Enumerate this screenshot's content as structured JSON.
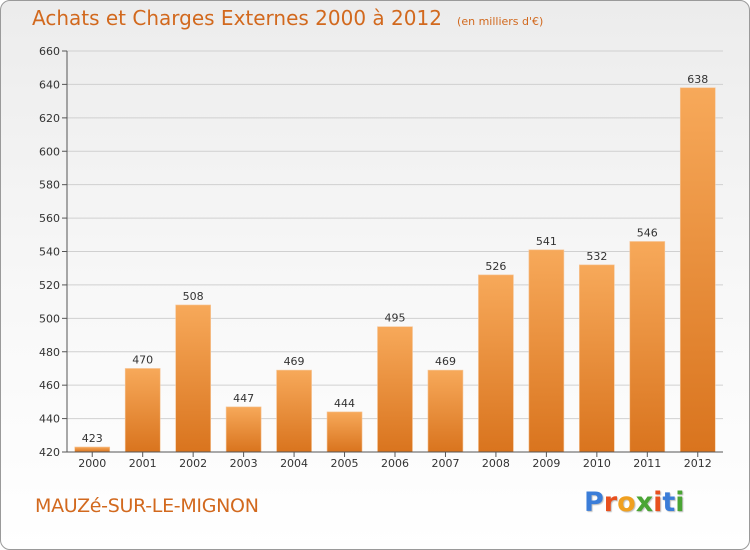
{
  "header": {
    "title": "Achats et Charges Externes 2000 à 2012",
    "unit": "(en milliers d'€)"
  },
  "footer": {
    "commune": "MAUZé-SUR-LE-MIGNON",
    "logo_text": "Proxiti",
    "logo_letter_colors": [
      "#3b7dd8",
      "#e8501e",
      "#f0a020",
      "#4aa534",
      "#e8501e",
      "#3b7dd8",
      "#4aa534"
    ]
  },
  "colors": {
    "bar_top": "#f7a95a",
    "bar_bottom": "#d9741e",
    "text": "#d2691e",
    "grid": "#d0d0d0"
  },
  "chart_data": {
    "type": "bar",
    "title": "Achats et Charges Externes 2000 à 2012",
    "subtitle": "(en milliers d'€)",
    "categories": [
      "2000",
      "2001",
      "2002",
      "2003",
      "2004",
      "2005",
      "2006",
      "2007",
      "2008",
      "2009",
      "2010",
      "2011",
      "2012"
    ],
    "values": [
      423,
      470,
      508,
      447,
      469,
      444,
      495,
      469,
      526,
      541,
      532,
      546,
      638
    ],
    "ylim": [
      420,
      660
    ],
    "yticks": [
      420,
      440,
      460,
      480,
      500,
      520,
      540,
      560,
      580,
      600,
      620,
      640,
      660
    ],
    "grid": true,
    "xlabel": "",
    "ylabel": ""
  }
}
